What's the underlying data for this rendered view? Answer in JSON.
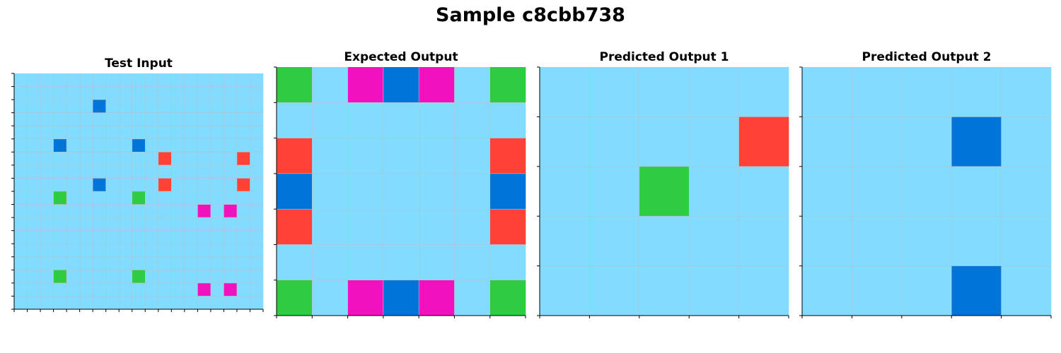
{
  "title": "Sample c8cbb738",
  "colors": {
    "0": "#82dcff",
    "1": "#0074d9",
    "2": "#ff4136",
    "3": "#2ecc40",
    "6": "#f012be",
    "grid_line": "#b8c0c8",
    "axis": "#000000"
  },
  "panels": [
    {
      "title": "Test Input",
      "grid": [
        [
          0,
          0,
          0,
          0,
          0,
          0,
          0,
          0,
          0,
          0,
          0,
          0,
          0,
          0,
          0,
          0,
          0,
          0,
          0
        ],
        [
          0,
          0,
          0,
          0,
          0,
          0,
          0,
          0,
          0,
          0,
          0,
          0,
          0,
          0,
          0,
          0,
          0,
          0,
          0
        ],
        [
          0,
          0,
          0,
          0,
          0,
          0,
          1,
          0,
          0,
          0,
          0,
          0,
          0,
          0,
          0,
          0,
          0,
          0,
          0
        ],
        [
          0,
          0,
          0,
          0,
          0,
          0,
          0,
          0,
          0,
          0,
          0,
          0,
          0,
          0,
          0,
          0,
          0,
          0,
          0
        ],
        [
          0,
          0,
          0,
          0,
          0,
          0,
          0,
          0,
          0,
          0,
          0,
          0,
          0,
          0,
          0,
          0,
          0,
          0,
          0
        ],
        [
          0,
          0,
          0,
          1,
          0,
          0,
          0,
          0,
          0,
          1,
          0,
          0,
          0,
          0,
          0,
          0,
          0,
          0,
          0
        ],
        [
          0,
          0,
          0,
          0,
          0,
          0,
          0,
          0,
          0,
          0,
          0,
          2,
          0,
          0,
          0,
          0,
          0,
          2,
          0
        ],
        [
          0,
          0,
          0,
          0,
          0,
          0,
          0,
          0,
          0,
          0,
          0,
          0,
          0,
          0,
          0,
          0,
          0,
          0,
          0
        ],
        [
          0,
          0,
          0,
          0,
          0,
          0,
          1,
          0,
          0,
          0,
          0,
          2,
          0,
          0,
          0,
          0,
          0,
          2,
          0
        ],
        [
          0,
          0,
          0,
          3,
          0,
          0,
          0,
          0,
          0,
          3,
          0,
          0,
          0,
          0,
          0,
          0,
          0,
          0,
          0
        ],
        [
          0,
          0,
          0,
          0,
          0,
          0,
          0,
          0,
          0,
          0,
          0,
          0,
          0,
          0,
          6,
          0,
          6,
          0,
          0
        ],
        [
          0,
          0,
          0,
          0,
          0,
          0,
          0,
          0,
          0,
          0,
          0,
          0,
          0,
          0,
          0,
          0,
          0,
          0,
          0
        ],
        [
          0,
          0,
          0,
          0,
          0,
          0,
          0,
          0,
          0,
          0,
          0,
          0,
          0,
          0,
          0,
          0,
          0,
          0,
          0
        ],
        [
          0,
          0,
          0,
          0,
          0,
          0,
          0,
          0,
          0,
          0,
          0,
          0,
          0,
          0,
          0,
          0,
          0,
          0,
          0
        ],
        [
          0,
          0,
          0,
          0,
          0,
          0,
          0,
          0,
          0,
          0,
          0,
          0,
          0,
          0,
          0,
          0,
          0,
          0,
          0
        ],
        [
          0,
          0,
          0,
          3,
          0,
          0,
          0,
          0,
          0,
          3,
          0,
          0,
          0,
          0,
          0,
          0,
          0,
          0,
          0
        ],
        [
          0,
          0,
          0,
          0,
          0,
          0,
          0,
          0,
          0,
          0,
          0,
          0,
          0,
          0,
          6,
          0,
          6,
          0,
          0
        ],
        [
          0,
          0,
          0,
          0,
          0,
          0,
          0,
          0,
          0,
          0,
          0,
          0,
          0,
          0,
          0,
          0,
          0,
          0,
          0
        ]
      ]
    },
    {
      "title": "Expected Output",
      "grid": [
        [
          3,
          0,
          6,
          1,
          6,
          0,
          3
        ],
        [
          0,
          0,
          0,
          0,
          0,
          0,
          0
        ],
        [
          2,
          0,
          0,
          0,
          0,
          0,
          2
        ],
        [
          1,
          0,
          0,
          0,
          0,
          0,
          1
        ],
        [
          2,
          0,
          0,
          0,
          0,
          0,
          2
        ],
        [
          0,
          0,
          0,
          0,
          0,
          0,
          0
        ],
        [
          3,
          0,
          6,
          1,
          6,
          0,
          3
        ]
      ]
    },
    {
      "title": "Predicted Output 1",
      "grid": [
        [
          0,
          0,
          0,
          0,
          0
        ],
        [
          0,
          0,
          0,
          0,
          2
        ],
        [
          0,
          0,
          3,
          0,
          0
        ],
        [
          0,
          0,
          0,
          0,
          0
        ],
        [
          0,
          0,
          0,
          0,
          0
        ]
      ]
    },
    {
      "title": "Predicted Output 2",
      "grid": [
        [
          0,
          0,
          0,
          0,
          0
        ],
        [
          0,
          0,
          0,
          1,
          0
        ],
        [
          0,
          0,
          0,
          0,
          0
        ],
        [
          0,
          0,
          0,
          0,
          0
        ],
        [
          0,
          0,
          0,
          1,
          0
        ]
      ]
    }
  ]
}
